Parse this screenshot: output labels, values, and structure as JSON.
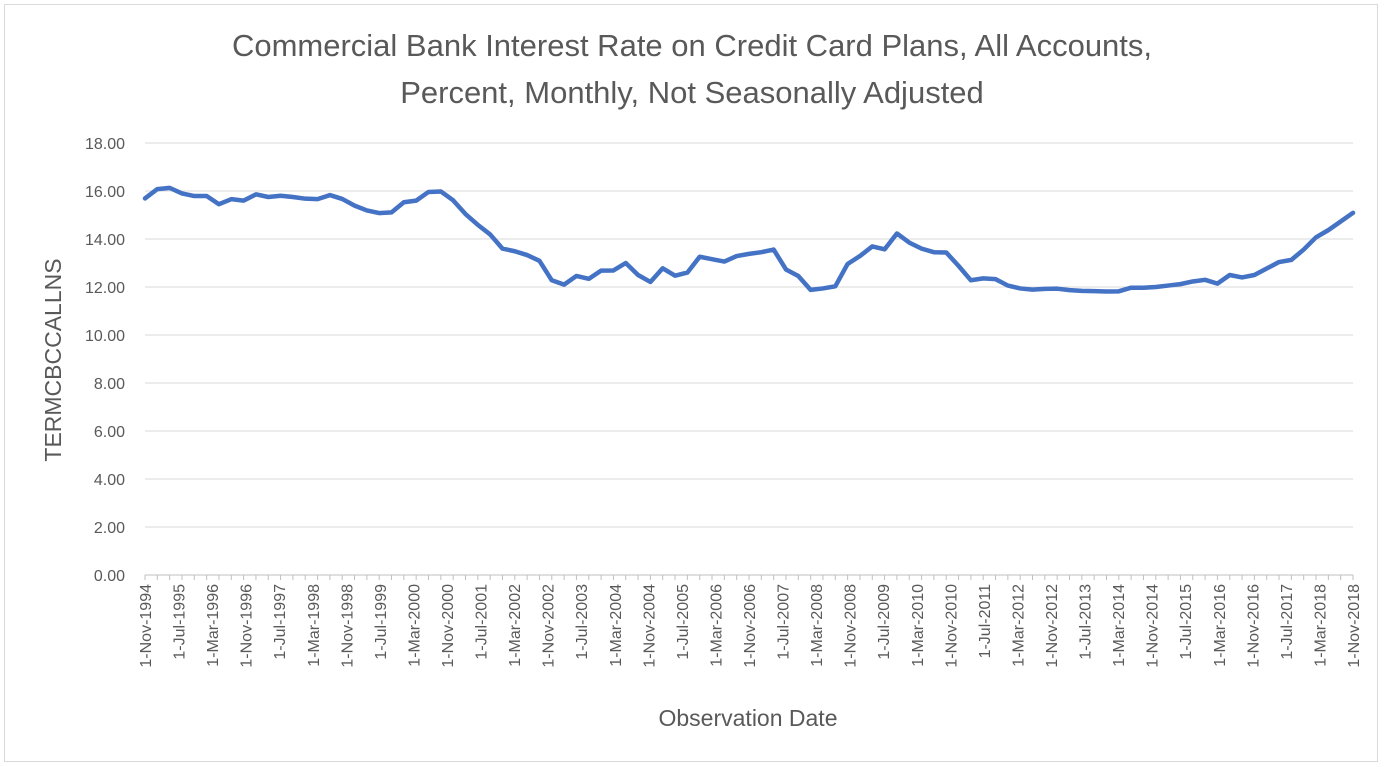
{
  "chart_data": {
    "type": "line",
    "title_lines": [
      "Commercial Bank Interest Rate on Credit Card Plans, All Accounts,",
      "Percent, Monthly, Not Seasonally Adjusted"
    ],
    "xlabel": "Observation Date",
    "ylabel": "TERMCBCCALLNS",
    "ylim": [
      0,
      18
    ],
    "yticks": [
      "0.00",
      "2.00",
      "4.00",
      "6.00",
      "8.00",
      "10.00",
      "12.00",
      "14.00",
      "16.00",
      "18.00"
    ],
    "grid": true,
    "legend": "none",
    "line_color": "#4472c4",
    "x_tick_labels": [
      "1-Nov-1994",
      "1-Jul-1995",
      "1-Mar-1996",
      "1-Nov-1996",
      "1-Jul-1997",
      "1-Mar-1998",
      "1-Nov-1998",
      "1-Jul-1999",
      "1-Mar-2000",
      "1-Nov-2000",
      "1-Jul-2001",
      "1-Mar-2002",
      "1-Nov-2002",
      "1-Jul-2003",
      "1-Mar-2004",
      "1-Nov-2004",
      "1-Jul-2005",
      "1-Mar-2006",
      "1-Nov-2006",
      "1-Jul-2007",
      "1-Mar-2008",
      "1-Nov-2008",
      "1-Jul-2009",
      "1-Mar-2010",
      "1-Nov-2010",
      "1-Jul-2011",
      "1-Mar-2012",
      "1-Nov-2012",
      "1-Jul-2013",
      "1-Mar-2014",
      "1-Nov-2014",
      "1-Jul-2015",
      "1-Mar-2016",
      "1-Nov-2016",
      "1-Jul-2017",
      "1-Mar-2018",
      "1-Nov-2018"
    ],
    "series": [
      {
        "name": "TERMCBCCALLNS",
        "values": [
          15.69,
          16.08,
          16.13,
          15.9,
          15.79,
          15.79,
          15.45,
          15.66,
          15.6,
          15.86,
          15.75,
          15.8,
          15.75,
          15.68,
          15.66,
          15.83,
          15.67,
          15.39,
          15.19,
          15.08,
          15.11,
          15.53,
          15.6,
          15.96,
          15.98,
          15.61,
          15.04,
          14.59,
          14.19,
          13.6,
          13.49,
          13.33,
          13.09,
          12.28,
          12.1,
          12.46,
          12.34,
          12.68,
          12.69,
          13.0,
          12.5,
          12.21,
          12.78,
          12.47,
          12.6,
          13.26,
          13.16,
          13.06,
          13.29,
          13.38,
          13.45,
          13.56,
          12.73,
          12.46,
          11.88,
          11.94,
          12.03,
          12.96,
          13.29,
          13.69,
          13.57,
          14.23,
          13.85,
          13.6,
          13.45,
          13.44,
          12.88,
          12.28,
          12.36,
          12.33,
          12.06,
          11.94,
          11.89,
          11.92,
          11.93,
          11.87,
          11.84,
          11.83,
          11.81,
          11.82,
          11.97,
          11.97,
          12.0,
          12.06,
          12.12,
          12.23,
          12.3,
          12.14,
          12.5,
          12.4,
          12.5,
          12.77,
          13.04,
          13.13,
          13.56,
          14.07,
          14.37,
          14.73,
          15.09
        ]
      }
    ]
  }
}
